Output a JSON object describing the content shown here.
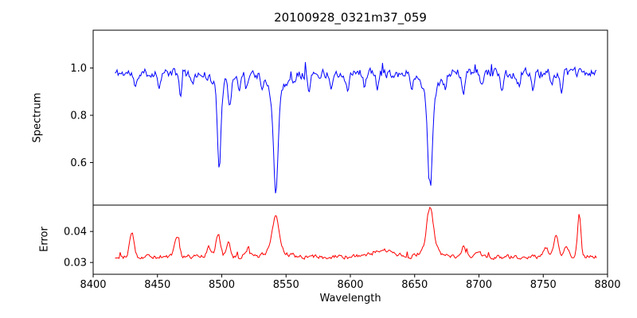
{
  "chart_data": [
    {
      "id": "spectrum",
      "type": "line",
      "title": "20100928_0321m37_059",
      "ylabel": "Spectrum",
      "color": "#0000ff",
      "xlim": [
        8400,
        8800
      ],
      "ylim": [
        0.42,
        1.16
      ],
      "yticks": [
        {
          "value": 1.0,
          "label": "1.0"
        },
        {
          "value": 0.8,
          "label": "0.8"
        },
        {
          "value": 0.6,
          "label": "0.6"
        }
      ],
      "x_start": 8417,
      "x_end": 8792,
      "x_step": 0.8,
      "baseline": 0.978,
      "noise_amplitude": 0.032,
      "spike_probability": 0.02,
      "spike_amplitude": 0.07,
      "seed": 11,
      "feature_type": "absorption",
      "features": [
        [
          8498,
          0.33,
          1.4
        ],
        [
          8498,
          0.055,
          5
        ],
        [
          8542,
          0.42,
          1.6
        ],
        [
          8542,
          0.095,
          6
        ],
        [
          8662,
          0.43,
          1.6
        ],
        [
          8662,
          0.09,
          6
        ],
        [
          8433,
          0.07,
          1.2
        ],
        [
          8451,
          0.05,
          1.0
        ],
        [
          8468,
          0.09,
          1.2
        ],
        [
          8477,
          0.06,
          1.0
        ],
        [
          8506,
          0.12,
          1.3
        ],
        [
          8514,
          0.07,
          1.0
        ],
        [
          8519,
          0.06,
          1.0
        ],
        [
          8531,
          0.06,
          1.0
        ],
        [
          8556,
          0.05,
          1.0
        ],
        [
          8568,
          0.07,
          1.2
        ],
        [
          8585,
          0.05,
          1.0
        ],
        [
          8598,
          0.09,
          1.2
        ],
        [
          8611,
          0.05,
          1.0
        ],
        [
          8621,
          0.07,
          1.0
        ],
        [
          8648,
          0.05,
          1.0
        ],
        [
          8674,
          0.06,
          1.0
        ],
        [
          8688,
          0.09,
          1.2
        ],
        [
          8702,
          0.05,
          1.0
        ],
        [
          8718,
          0.07,
          1.0
        ],
        [
          8731,
          0.05,
          1.0
        ],
        [
          8742,
          0.06,
          1.0
        ],
        [
          8757,
          0.05,
          1.0
        ],
        [
          8764,
          0.07,
          1.0
        ]
      ]
    },
    {
      "id": "error",
      "type": "line",
      "ylabel": "Error",
      "xlabel": "Wavelength",
      "color": "#ff0000",
      "xlim": [
        8400,
        8800
      ],
      "ylim": [
        0.0262,
        0.0485
      ],
      "yticks": [
        {
          "value": 0.04,
          "label": "0.04"
        },
        {
          "value": 0.03,
          "label": "0.03"
        }
      ],
      "xticks": [
        {
          "value": 8400,
          "label": "8400"
        },
        {
          "value": 8450,
          "label": "8450"
        },
        {
          "value": 8500,
          "label": "8500"
        },
        {
          "value": 8550,
          "label": "8550"
        },
        {
          "value": 8600,
          "label": "8600"
        },
        {
          "value": 8650,
          "label": "8650"
        },
        {
          "value": 8700,
          "label": "8700"
        },
        {
          "value": 8750,
          "label": "8750"
        },
        {
          "value": 8800,
          "label": "8800"
        }
      ],
      "x_start": 8417,
      "x_end": 8792,
      "x_step": 0.8,
      "baseline": 0.0318,
      "noise_amplitude": 0.0011,
      "spike_probability": 0.03,
      "spike_amplitude": 0.0025,
      "seed": 29,
      "feature_type": "emission",
      "features": [
        [
          8430,
          0.008,
          1.8
        ],
        [
          8465,
          0.0068,
          1.8
        ],
        [
          8490,
          0.003,
          1.5
        ],
        [
          8497,
          0.0075,
          1.8
        ],
        [
          8505,
          0.0045,
          1.5
        ],
        [
          8520,
          0.002,
          2
        ],
        [
          8542,
          0.0105,
          2.5
        ],
        [
          8542,
          0.003,
          6
        ],
        [
          8625,
          0.002,
          9
        ],
        [
          8662,
          0.013,
          2.5
        ],
        [
          8662,
          0.003,
          6
        ],
        [
          8688,
          0.0035,
          1.5
        ],
        [
          8700,
          0.002,
          1.5
        ],
        [
          8752,
          0.003,
          1.5
        ],
        [
          8760,
          0.0075,
          1.8
        ],
        [
          8768,
          0.004,
          1.5
        ],
        [
          8778,
          0.0135,
          1.3
        ]
      ]
    }
  ]
}
